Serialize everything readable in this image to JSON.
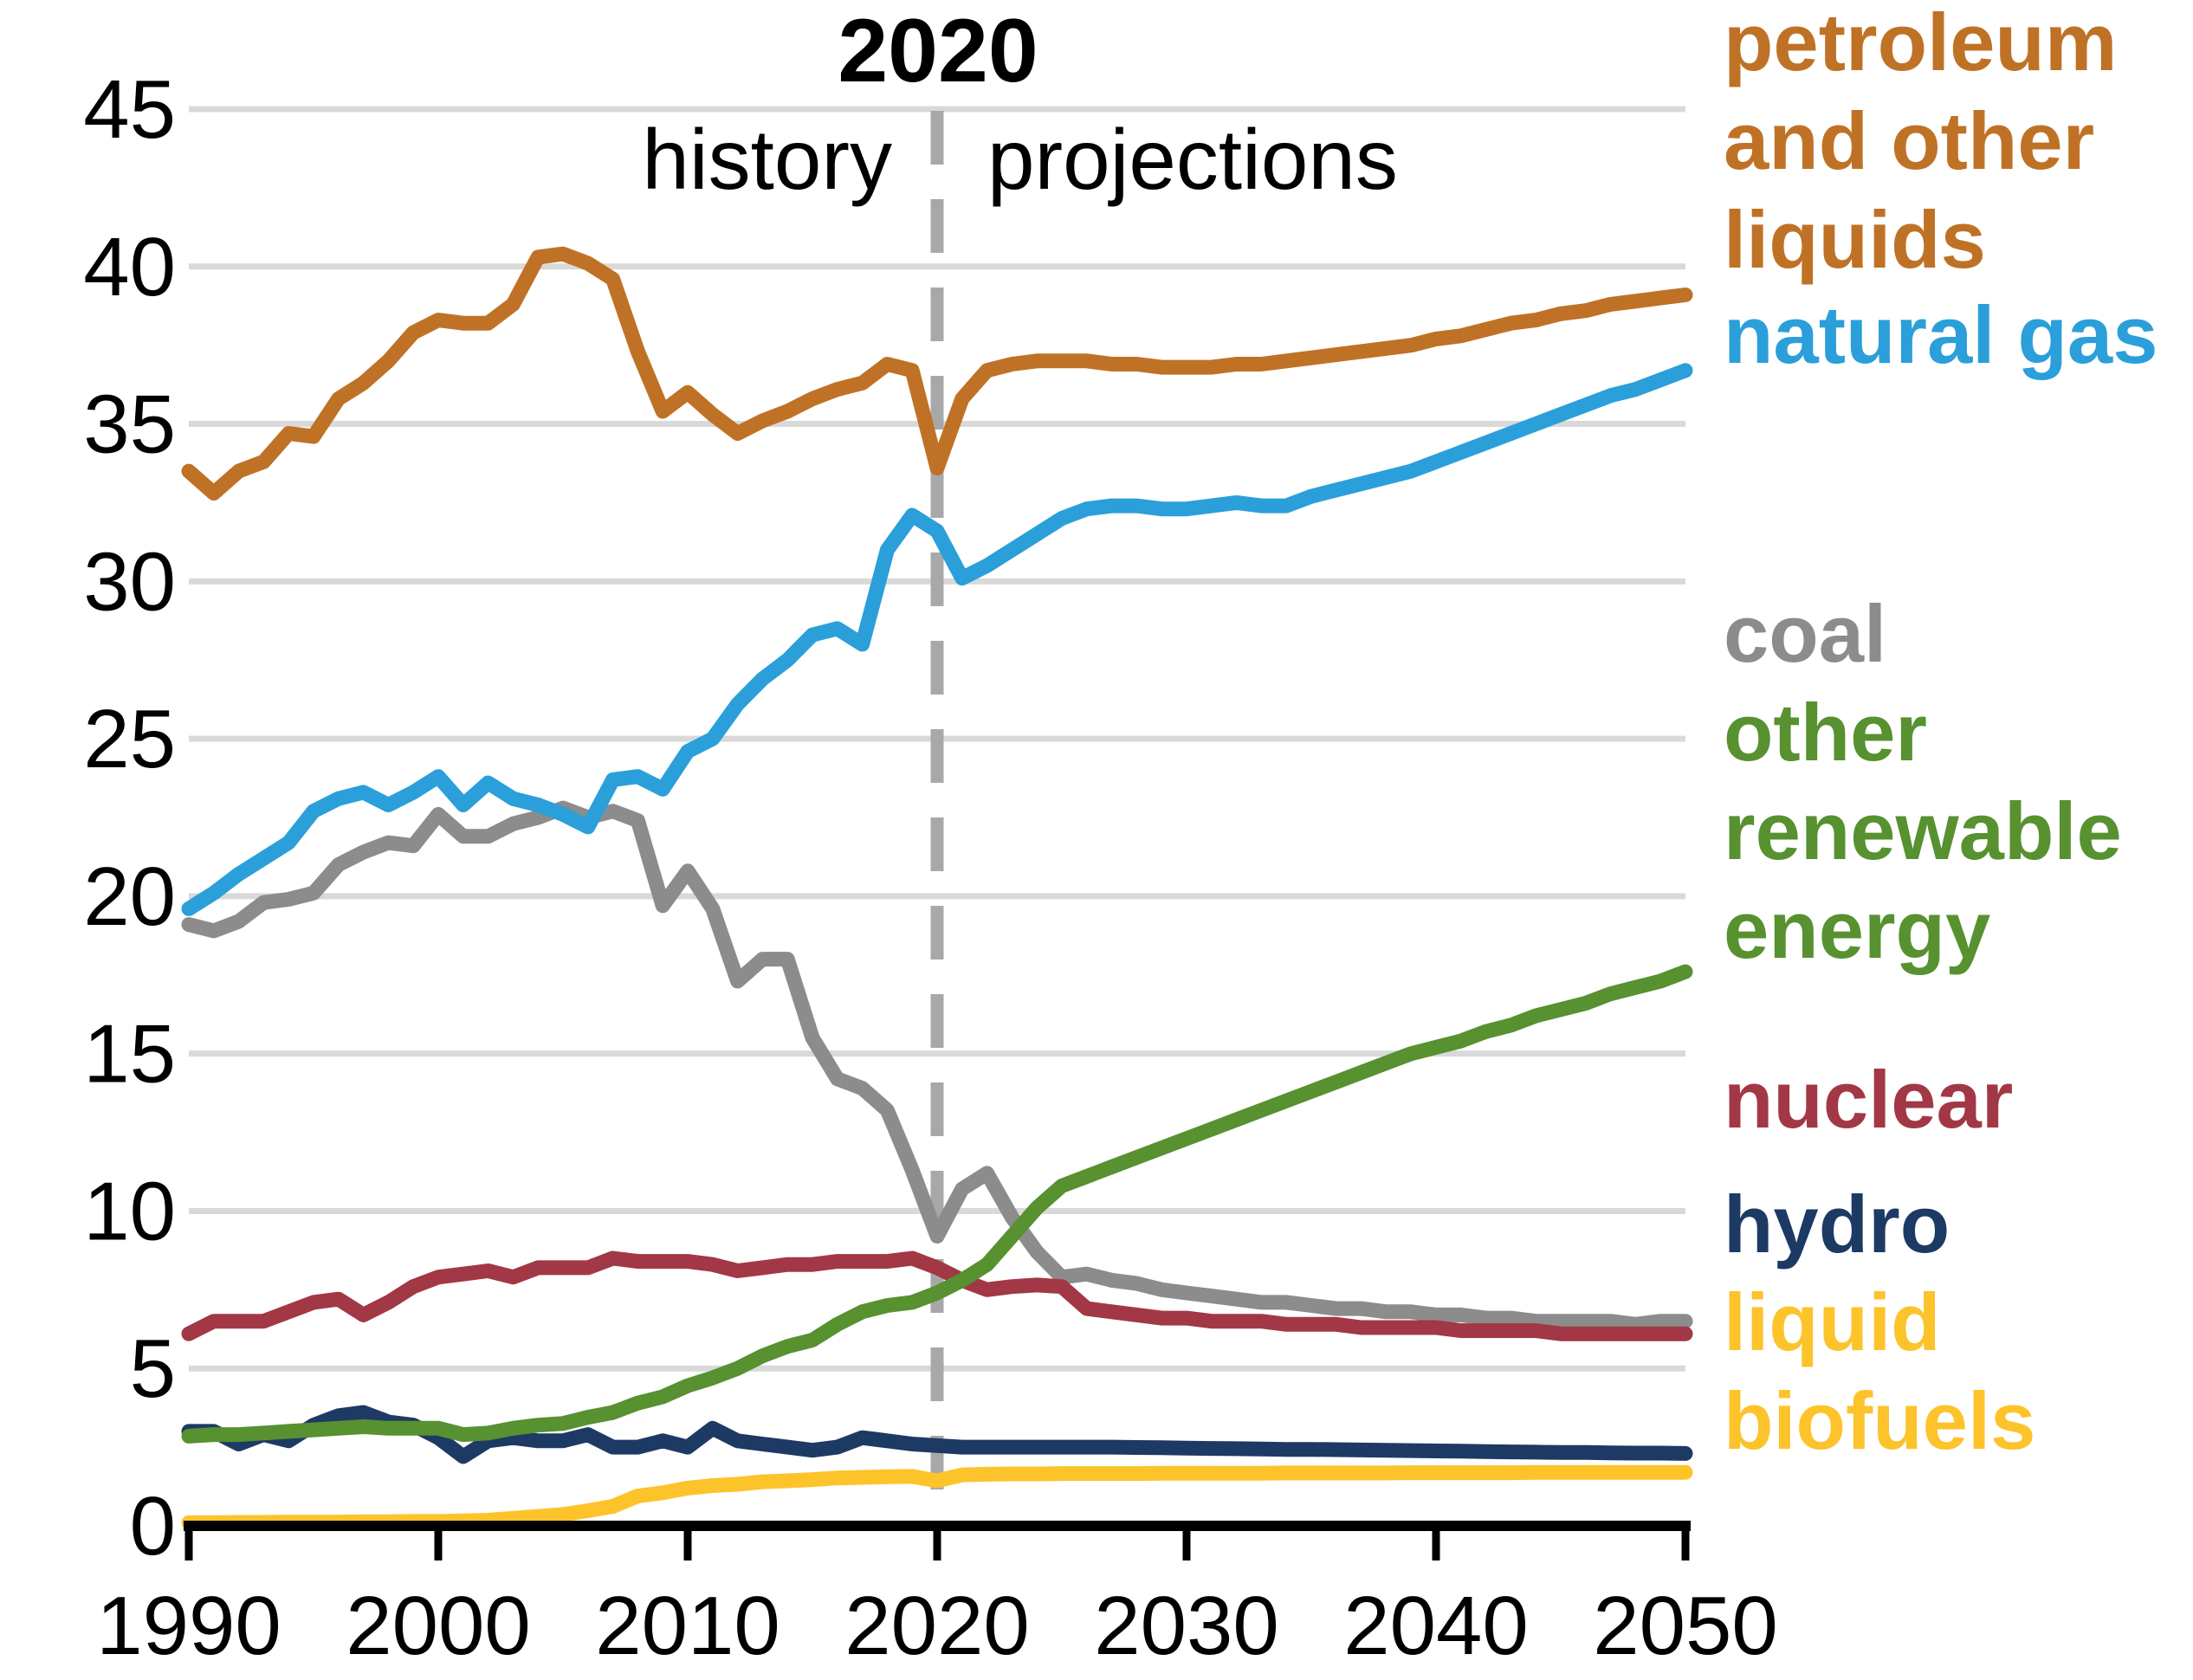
{
  "annotations": {
    "divider_year": "2020",
    "left_label": "history",
    "right_label": "projections"
  },
  "legend": [
    {
      "id": "petroleum",
      "color": "#bf7226",
      "lines": [
        "petroleum",
        "and other",
        "liquids"
      ]
    },
    {
      "id": "natural-gas",
      "color": "#2b9fd9",
      "lines": [
        "natural gas"
      ]
    },
    {
      "id": "coal",
      "color": "#8c8c8c",
      "lines": [
        "coal"
      ]
    },
    {
      "id": "other-renewables",
      "color": "#579130",
      "lines": [
        "other",
        "renewable",
        "energy"
      ]
    },
    {
      "id": "nuclear",
      "color": "#a23845",
      "lines": [
        "nuclear"
      ]
    },
    {
      "id": "hydro",
      "color": "#1d3a64",
      "lines": [
        "hydro"
      ]
    },
    {
      "id": "liquid-biofuels",
      "color": "#fdc32b",
      "lines": [
        "liquid",
        "biofuels"
      ]
    }
  ],
  "chart_data": {
    "type": "line",
    "title": "2020 history / projections divider",
    "xlabel": "",
    "ylabel": "",
    "xlim": [
      1990,
      2050
    ],
    "ylim": [
      0,
      45
    ],
    "x_ticks": [
      1990,
      2000,
      2010,
      2020,
      2030,
      2040,
      2050
    ],
    "y_ticks": [
      0,
      5,
      10,
      15,
      20,
      25,
      30,
      35,
      40,
      45
    ],
    "grid": "horizontal",
    "gridline_color": "#d9d9d9",
    "divider_x": 2020,
    "divider_color": "#a8a8a8",
    "legend_position": "right",
    "x_start": 1990,
    "x_step": 1,
    "series": [
      {
        "name": "coal",
        "color": "#8c8c8c",
        "values": [
          19.1,
          18.9,
          19.2,
          19.8,
          19.9,
          20.1,
          21.0,
          21.4,
          21.7,
          21.6,
          22.6,
          21.9,
          21.9,
          22.3,
          22.5,
          22.8,
          22.5,
          22.7,
          22.4,
          19.7,
          20.8,
          19.6,
          17.3,
          18.0,
          18.0,
          15.5,
          14.2,
          13.9,
          13.2,
          11.3,
          9.2,
          10.7,
          11.2,
          9.8,
          8.7,
          7.9,
          8.0,
          7.8,
          7.7,
          7.5,
          7.4,
          7.3,
          7.2,
          7.1,
          7.1,
          7.0,
          6.9,
          6.9,
          6.8,
          6.8,
          6.7,
          6.7,
          6.6,
          6.6,
          6.5,
          6.5,
          6.5,
          6.5,
          6.4,
          6.5,
          6.5
        ]
      },
      {
        "name": "nuclear",
        "color": "#a23845",
        "values": [
          6.1,
          6.5,
          6.5,
          6.5,
          6.8,
          7.1,
          7.2,
          6.7,
          7.1,
          7.6,
          7.9,
          8.0,
          8.1,
          7.9,
          8.2,
          8.2,
          8.2,
          8.5,
          8.4,
          8.4,
          8.4,
          8.3,
          8.1,
          8.2,
          8.3,
          8.3,
          8.4,
          8.4,
          8.4,
          8.5,
          8.2,
          7.8,
          7.5,
          7.6,
          7.65,
          7.6,
          6.9,
          6.8,
          6.7,
          6.6,
          6.6,
          6.5,
          6.5,
          6.5,
          6.4,
          6.4,
          6.4,
          6.3,
          6.3,
          6.3,
          6.3,
          6.2,
          6.2,
          6.2,
          6.2,
          6.1,
          6.1,
          6.1,
          6.1,
          6.1,
          6.1
        ]
      },
      {
        "name": "hydro",
        "color": "#1d3a64",
        "values": [
          3.0,
          3.0,
          2.6,
          2.9,
          2.7,
          3.2,
          3.5,
          3.6,
          3.3,
          3.2,
          2.8,
          2.2,
          2.7,
          2.8,
          2.7,
          2.7,
          2.9,
          2.5,
          2.5,
          2.7,
          2.5,
          3.1,
          2.7,
          2.6,
          2.5,
          2.4,
          2.5,
          2.8,
          2.7,
          2.6,
          2.55,
          2.5,
          2.5,
          2.5,
          2.5,
          2.5,
          2.5,
          2.5,
          2.49,
          2.48,
          2.47,
          2.46,
          2.45,
          2.44,
          2.43,
          2.43,
          2.42,
          2.41,
          2.4,
          2.39,
          2.38,
          2.37,
          2.36,
          2.35,
          2.34,
          2.33,
          2.33,
          2.32,
          2.31,
          2.31,
          2.3
        ]
      },
      {
        "name": "liquid biofuels",
        "color": "#fdc32b",
        "values": [
          0.1,
          0.1,
          0.11,
          0.11,
          0.12,
          0.12,
          0.12,
          0.13,
          0.13,
          0.14,
          0.14,
          0.16,
          0.18,
          0.24,
          0.3,
          0.36,
          0.48,
          0.62,
          0.95,
          1.05,
          1.2,
          1.28,
          1.32,
          1.4,
          1.43,
          1.47,
          1.52,
          1.54,
          1.56,
          1.57,
          1.43,
          1.62,
          1.64,
          1.65,
          1.65,
          1.66,
          1.66,
          1.66,
          1.66,
          1.67,
          1.67,
          1.67,
          1.67,
          1.67,
          1.68,
          1.68,
          1.68,
          1.68,
          1.68,
          1.69,
          1.69,
          1.69,
          1.69,
          1.69,
          1.7,
          1.7,
          1.7,
          1.7,
          1.7,
          1.7,
          1.7
        ]
      },
      {
        "name": "other renewable energy",
        "color": "#579130",
        "values": [
          2.85,
          2.9,
          2.9,
          2.95,
          3.0,
          3.05,
          3.1,
          3.15,
          3.1,
          3.1,
          3.1,
          2.9,
          2.95,
          3.1,
          3.2,
          3.25,
          3.45,
          3.6,
          3.9,
          4.1,
          4.45,
          4.7,
          5.0,
          5.4,
          5.7,
          5.9,
          6.4,
          6.8,
          7.0,
          7.1,
          7.4,
          7.8,
          8.3,
          9.2,
          10.1,
          10.8,
          11.1,
          11.4,
          11.7,
          12.0,
          12.3,
          12.6,
          12.9,
          13.2,
          13.5,
          13.8,
          14.1,
          14.4,
          14.7,
          15.0,
          15.2,
          15.4,
          15.7,
          15.9,
          16.2,
          16.4,
          16.6,
          16.9,
          17.1,
          17.3,
          17.6
        ]
      },
      {
        "name": "natural gas",
        "color": "#2b9fd9",
        "values": [
          19.6,
          20.1,
          20.7,
          21.2,
          21.7,
          22.7,
          23.1,
          23.3,
          22.9,
          23.3,
          23.8,
          22.9,
          23.6,
          23.1,
          22.9,
          22.6,
          22.2,
          23.7,
          23.8,
          23.4,
          24.6,
          25.0,
          26.1,
          26.9,
          27.5,
          28.3,
          28.5,
          28.0,
          31.0,
          32.1,
          31.6,
          30.1,
          30.5,
          31.0,
          31.5,
          32.0,
          32.3,
          32.4,
          32.4,
          32.3,
          32.3,
          32.4,
          32.5,
          32.4,
          32.4,
          32.7,
          32.9,
          33.1,
          33.3,
          33.5,
          33.8,
          34.1,
          34.4,
          34.7,
          35.0,
          35.3,
          35.6,
          35.9,
          36.1,
          36.4,
          36.7
        ]
      },
      {
        "name": "petroleum and other liquids",
        "color": "#bf7226",
        "values": [
          33.5,
          32.8,
          33.5,
          33.8,
          34.7,
          34.6,
          35.8,
          36.3,
          37.0,
          37.9,
          38.3,
          38.2,
          38.2,
          38.8,
          40.3,
          40.4,
          40.1,
          39.6,
          37.3,
          35.4,
          36.0,
          35.3,
          34.7,
          35.1,
          35.4,
          35.8,
          36.1,
          36.3,
          36.9,
          36.7,
          33.6,
          35.8,
          36.7,
          36.9,
          37.0,
          37.0,
          37.0,
          36.9,
          36.9,
          36.8,
          36.8,
          36.8,
          36.9,
          36.9,
          37.0,
          37.1,
          37.2,
          37.3,
          37.4,
          37.5,
          37.7,
          37.8,
          38.0,
          38.2,
          38.3,
          38.5,
          38.6,
          38.8,
          38.9,
          39.0,
          39.1
        ]
      }
    ]
  }
}
